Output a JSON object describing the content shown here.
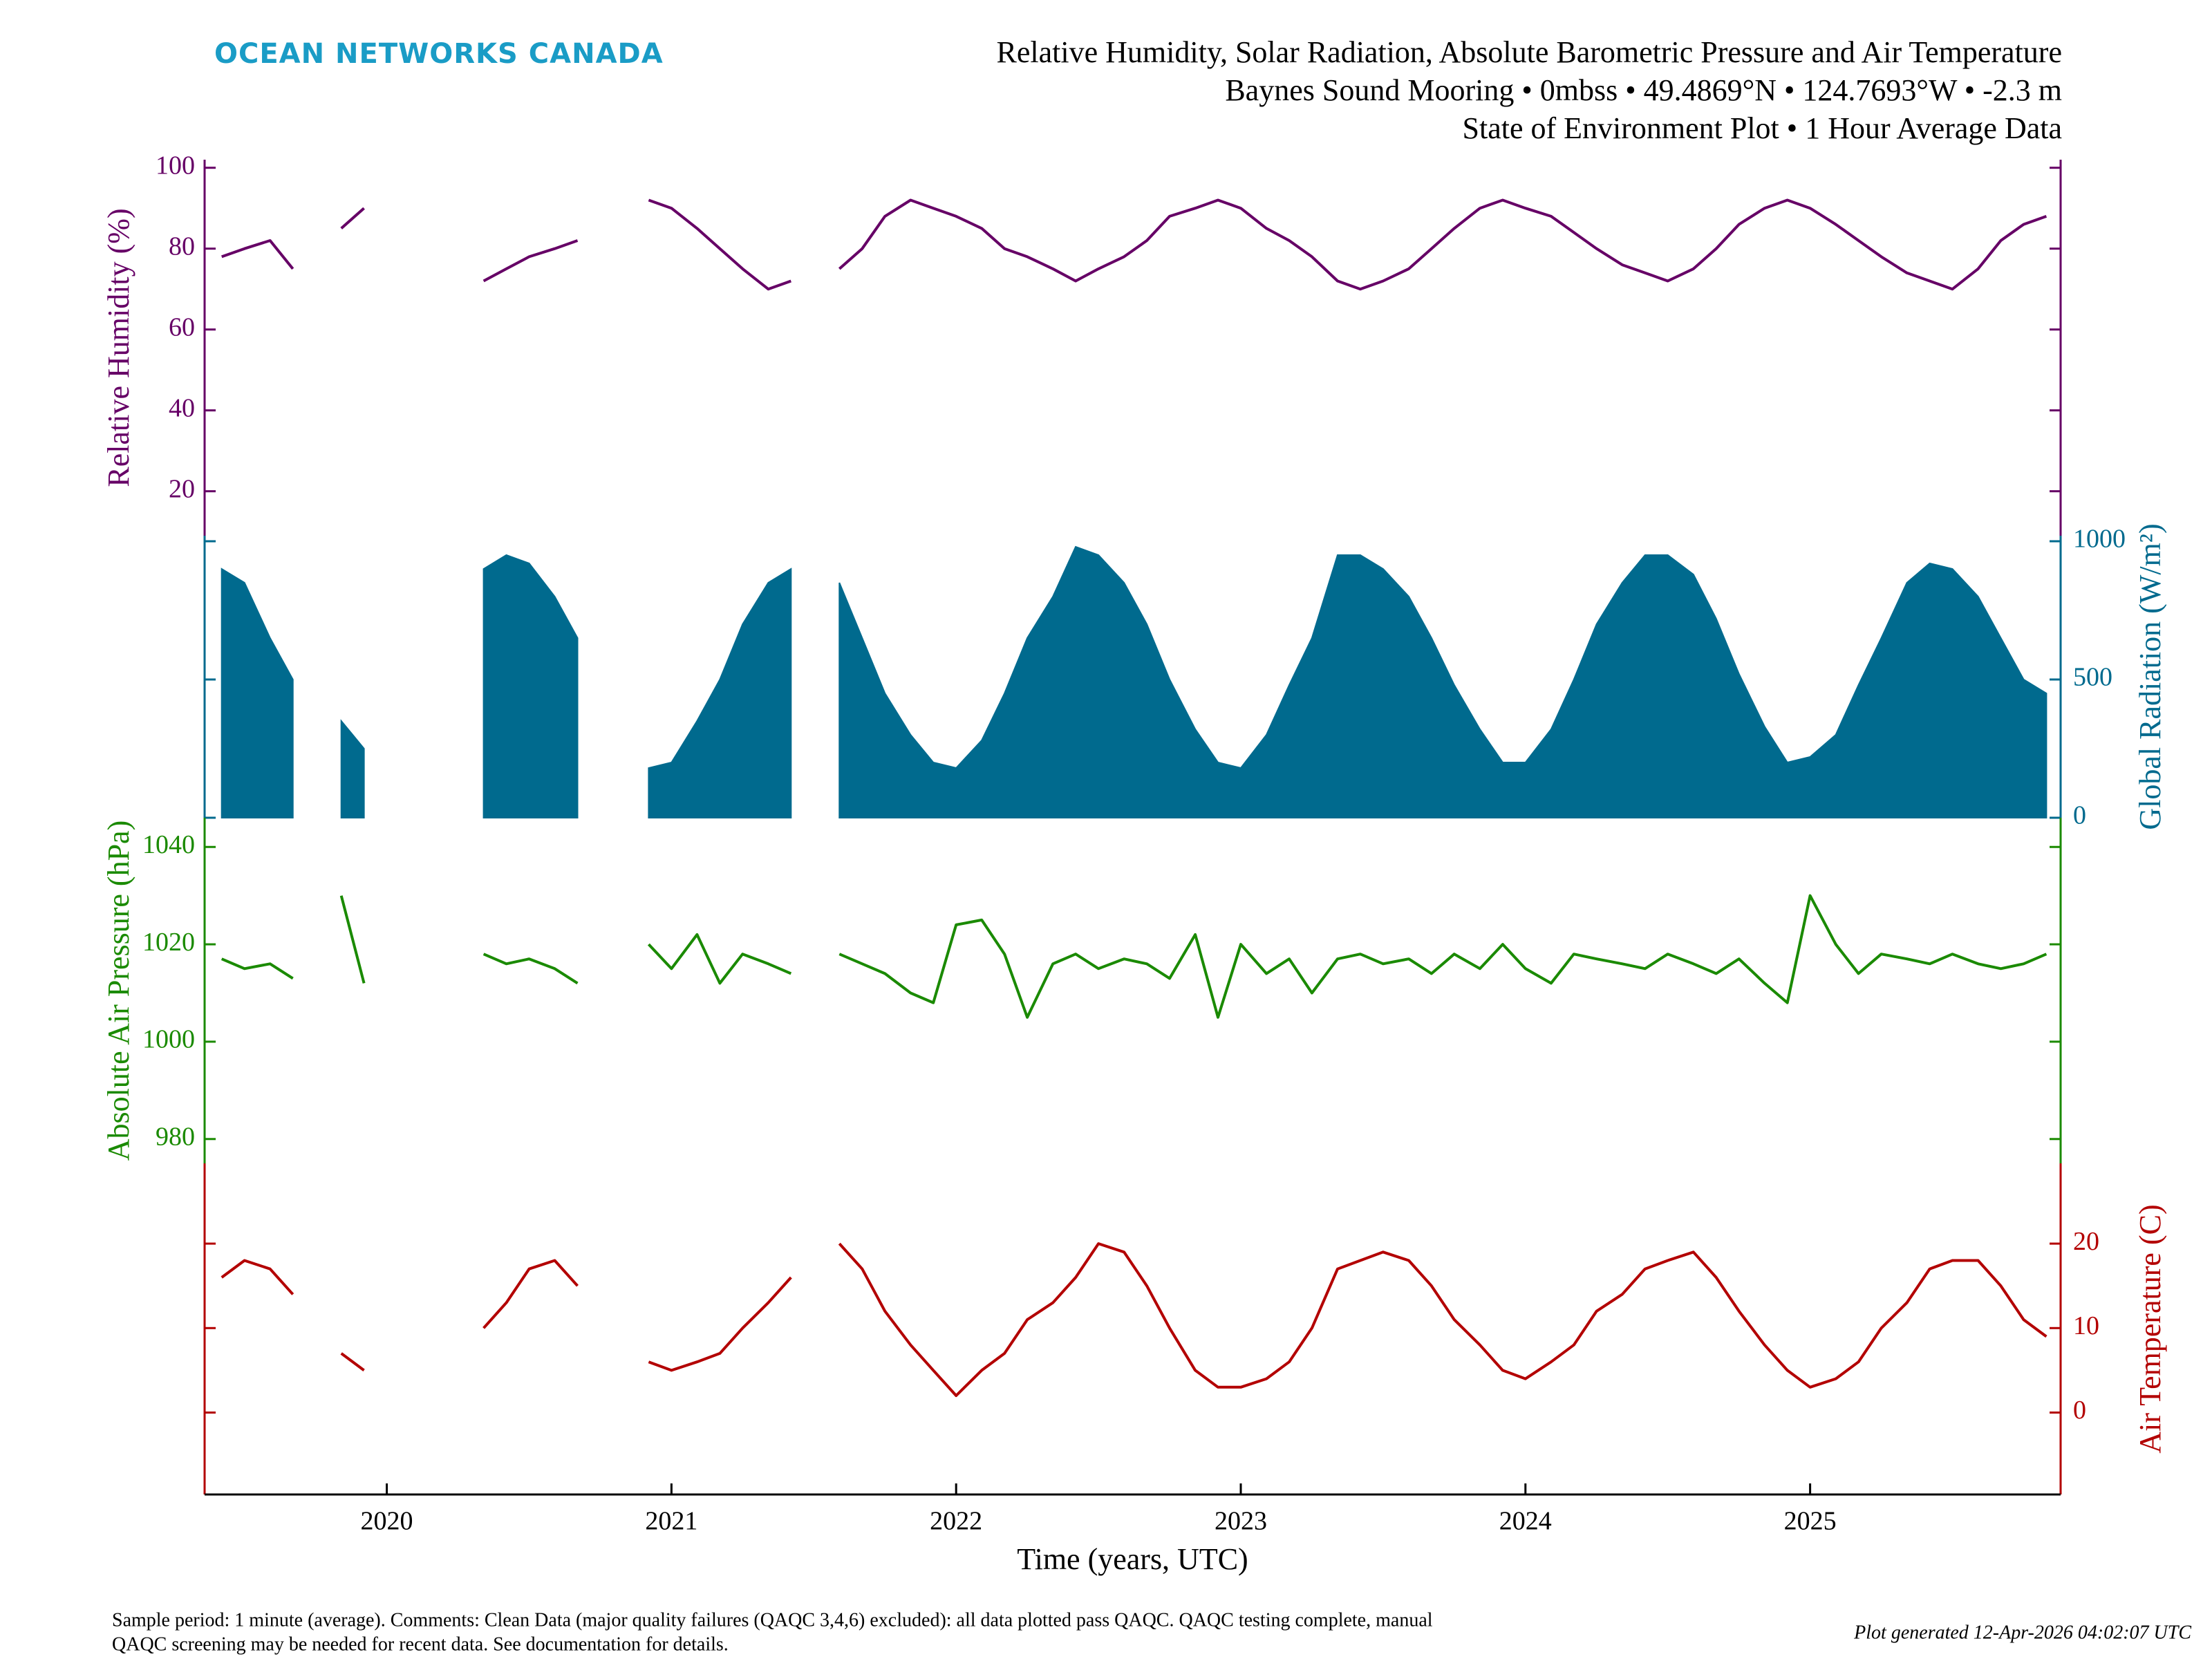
{
  "header": {
    "logo": "OCEAN NETWORKS CANADA",
    "title": "Relative Humidity, Solar Radiation, Absolute Barometric Pressure and Air Temperature",
    "subtitle": "Baynes Sound Mooring • 0mbss • 49.4869°N • 124.7693°W • -2.3 m",
    "subtitle2": "State of Environment Plot • 1 Hour Average Data"
  },
  "footer": {
    "comment_line1": "Sample period: 1 minute (average). Comments: Clean Data (major quality failures (QAQC 3,4,6) excluded): all data plotted pass QAQC. QAQC testing complete, manual",
    "comment_line2": "QAQC screening may be needed for recent data. See documentation for details.",
    "generated": "Plot generated 12-Apr-2026 04:02:07 UTC"
  },
  "chart_data": [
    {
      "type": "line",
      "ylabel": "Relative Humidity (%)",
      "axis_side": "left",
      "color": "#660066",
      "xlim": [
        2019.36,
        2025.88
      ],
      "ylim": [
        9,
        102
      ],
      "yticks": [
        20,
        40,
        60,
        80,
        100
      ],
      "x": [
        2019.42,
        2019.5,
        2019.59,
        2019.67,
        2019.75,
        2019.84,
        2019.92,
        2020.0,
        2020.09,
        2020.17,
        2020.25,
        2020.34,
        2020.42,
        2020.5,
        2020.59,
        2020.67,
        2020.75,
        2020.84,
        2020.92,
        2021.0,
        2021.09,
        2021.17,
        2021.25,
        2021.34,
        2021.42,
        2021.5,
        2021.59,
        2021.67,
        2021.75,
        2021.84,
        2021.92,
        2022.0,
        2022.09,
        2022.17,
        2022.25,
        2022.34,
        2022.42,
        2022.5,
        2022.59,
        2022.67,
        2022.75,
        2022.84,
        2022.92,
        2023.0,
        2023.09,
        2023.17,
        2023.25,
        2023.34,
        2023.42,
        2023.5,
        2023.59,
        2023.67,
        2023.75,
        2023.84,
        2023.92,
        2024.0,
        2024.09,
        2024.17,
        2024.25,
        2024.34,
        2024.42,
        2024.5,
        2024.59,
        2024.67,
        2024.75,
        2024.84,
        2024.92,
        2025.0,
        2025.09,
        2025.17,
        2025.25,
        2025.34,
        2025.42,
        2025.5,
        2025.59,
        2025.67,
        2025.75,
        2025.83
      ],
      "values": [
        78,
        80,
        82,
        75,
        null,
        85,
        90,
        null,
        null,
        null,
        null,
        72,
        75,
        78,
        80,
        82,
        null,
        null,
        92,
        90,
        85,
        80,
        75,
        70,
        72,
        null,
        75,
        80,
        88,
        92,
        90,
        88,
        85,
        80,
        78,
        75,
        72,
        75,
        78,
        82,
        88,
        90,
        92,
        90,
        85,
        82,
        78,
        72,
        70,
        72,
        75,
        80,
        85,
        90,
        92,
        90,
        88,
        84,
        80,
        76,
        74,
        72,
        75,
        80,
        86,
        90,
        92,
        90,
        86,
        82,
        78,
        74,
        72,
        70,
        75,
        82,
        86,
        88
      ]
    },
    {
      "type": "area",
      "ylabel": "Global Radiation (W/m²)",
      "axis_side": "right",
      "color": "#006a8e",
      "xlim": [
        2019.36,
        2025.88
      ],
      "ylim": [
        0,
        1020
      ],
      "yticks": [
        0,
        500,
        1000
      ],
      "x": [
        2019.42,
        2019.5,
        2019.59,
        2019.67,
        2019.75,
        2019.84,
        2019.92,
        2020.0,
        2020.09,
        2020.17,
        2020.25,
        2020.34,
        2020.42,
        2020.5,
        2020.59,
        2020.67,
        2020.75,
        2020.84,
        2020.92,
        2021.0,
        2021.09,
        2021.17,
        2021.25,
        2021.34,
        2021.42,
        2021.5,
        2021.59,
        2021.67,
        2021.75,
        2021.84,
        2021.92,
        2022.0,
        2022.09,
        2022.17,
        2022.25,
        2022.34,
        2022.42,
        2022.5,
        2022.59,
        2022.67,
        2022.75,
        2022.84,
        2022.92,
        2023.0,
        2023.09,
        2023.17,
        2023.25,
        2023.34,
        2023.42,
        2023.5,
        2023.59,
        2023.67,
        2023.75,
        2023.84,
        2023.92,
        2024.0,
        2024.09,
        2024.17,
        2024.25,
        2024.34,
        2024.42,
        2024.5,
        2024.59,
        2024.67,
        2024.75,
        2024.84,
        2024.92,
        2025.0,
        2025.09,
        2025.17,
        2025.25,
        2025.34,
        2025.42,
        2025.5,
        2025.59,
        2025.67,
        2025.75,
        2025.83
      ],
      "values": [
        900,
        850,
        650,
        500,
        null,
        350,
        250,
        null,
        null,
        null,
        null,
        900,
        950,
        920,
        800,
        650,
        null,
        null,
        180,
        200,
        350,
        500,
        700,
        850,
        900,
        null,
        850,
        650,
        450,
        300,
        200,
        180,
        280,
        450,
        650,
        800,
        980,
        950,
        850,
        700,
        500,
        320,
        200,
        180,
        300,
        480,
        650,
        950,
        950,
        900,
        800,
        650,
        480,
        320,
        200,
        200,
        320,
        500,
        700,
        850,
        950,
        950,
        880,
        720,
        520,
        330,
        200,
        220,
        300,
        480,
        650,
        850,
        920,
        900,
        800,
        650,
        500,
        450
      ]
    },
    {
      "type": "line",
      "ylabel": "Absolute Air Pressure (hPa)",
      "axis_side": "left",
      "color": "#1a8a00",
      "xlim": [
        2019.36,
        2025.88
      ],
      "ylim": [
        975,
        1046
      ],
      "yticks": [
        980,
        1000,
        1020,
        1040
      ],
      "x": [
        2019.42,
        2019.5,
        2019.59,
        2019.67,
        2019.75,
        2019.84,
        2019.92,
        2020.0,
        2020.09,
        2020.17,
        2020.25,
        2020.34,
        2020.42,
        2020.5,
        2020.59,
        2020.67,
        2020.75,
        2020.84,
        2020.92,
        2021.0,
        2021.09,
        2021.17,
        2021.25,
        2021.34,
        2021.42,
        2021.5,
        2021.59,
        2021.67,
        2021.75,
        2021.84,
        2021.92,
        2022.0,
        2022.09,
        2022.17,
        2022.25,
        2022.34,
        2022.42,
        2022.5,
        2022.59,
        2022.67,
        2022.75,
        2022.84,
        2022.92,
        2023.0,
        2023.09,
        2023.17,
        2023.25,
        2023.34,
        2023.42,
        2023.5,
        2023.59,
        2023.67,
        2023.75,
        2023.84,
        2023.92,
        2024.0,
        2024.09,
        2024.17,
        2024.25,
        2024.34,
        2024.42,
        2024.5,
        2024.59,
        2024.67,
        2024.75,
        2024.84,
        2024.92,
        2025.0,
        2025.09,
        2025.17,
        2025.25,
        2025.34,
        2025.42,
        2025.5,
        2025.59,
        2025.67,
        2025.75,
        2025.83
      ],
      "values": [
        1017,
        1015,
        1016,
        1013,
        null,
        1030,
        1012,
        null,
        null,
        null,
        null,
        1018,
        1016,
        1017,
        1015,
        1012,
        null,
        null,
        1020,
        1015,
        1022,
        1012,
        1018,
        1016,
        1014,
        null,
        1018,
        1016,
        1014,
        1010,
        1008,
        1024,
        1025,
        1018,
        1005,
        1016,
        1018,
        1015,
        1017,
        1016,
        1013,
        1022,
        1005,
        1020,
        1014,
        1017,
        1010,
        1017,
        1018,
        1016,
        1017,
        1014,
        1018,
        1015,
        1020,
        1015,
        1012,
        1018,
        1017,
        1016,
        1015,
        1018,
        1016,
        1014,
        1017,
        1012,
        1008,
        1030,
        1020,
        1014,
        1018,
        1017,
        1016,
        1018,
        1016,
        1015,
        1016,
        1018
      ]
    },
    {
      "type": "line",
      "ylabel": "Air Temperature (C)",
      "axis_side": "right",
      "color": "#b30000",
      "xlim": [
        2019.36,
        2025.88
      ],
      "ylim": [
        -9.7,
        29.5
      ],
      "yticks": [
        0,
        10,
        20
      ],
      "xticks": [
        2020,
        2021,
        2022,
        2023,
        2024,
        2025
      ],
      "xlabel": "Time (years, UTC)",
      "x": [
        2019.42,
        2019.5,
        2019.59,
        2019.67,
        2019.75,
        2019.84,
        2019.92,
        2020.0,
        2020.09,
        2020.17,
        2020.25,
        2020.34,
        2020.42,
        2020.5,
        2020.59,
        2020.67,
        2020.75,
        2020.84,
        2020.92,
        2021.0,
        2021.09,
        2021.17,
        2021.25,
        2021.34,
        2021.42,
        2021.5,
        2021.59,
        2021.67,
        2021.75,
        2021.84,
        2021.92,
        2022.0,
        2022.09,
        2022.17,
        2022.25,
        2022.34,
        2022.42,
        2022.5,
        2022.59,
        2022.67,
        2022.75,
        2022.84,
        2022.92,
        2023.0,
        2023.09,
        2023.17,
        2023.25,
        2023.34,
        2023.42,
        2023.5,
        2023.59,
        2023.67,
        2023.75,
        2023.84,
        2023.92,
        2024.0,
        2024.09,
        2024.17,
        2024.25,
        2024.34,
        2024.42,
        2024.5,
        2024.59,
        2024.67,
        2024.75,
        2024.84,
        2024.92,
        2025.0,
        2025.09,
        2025.17,
        2025.25,
        2025.34,
        2025.42,
        2025.5,
        2025.59,
        2025.67,
        2025.75,
        2025.83
      ],
      "values": [
        16,
        18,
        17,
        14,
        null,
        7,
        5,
        null,
        null,
        null,
        null,
        10,
        13,
        17,
        18,
        15,
        null,
        null,
        6,
        5,
        6,
        7,
        10,
        13,
        16,
        null,
        20,
        17,
        12,
        8,
        5,
        2,
        5,
        7,
        11,
        13,
        16,
        20,
        19,
        15,
        10,
        5,
        3,
        3,
        4,
        6,
        10,
        17,
        18,
        19,
        18,
        15,
        11,
        8,
        5,
        4,
        6,
        8,
        12,
        14,
        17,
        18,
        19,
        16,
        12,
        8,
        5,
        3,
        4,
        6,
        10,
        13,
        17,
        18,
        18,
        15,
        11,
        9
      ]
    }
  ]
}
